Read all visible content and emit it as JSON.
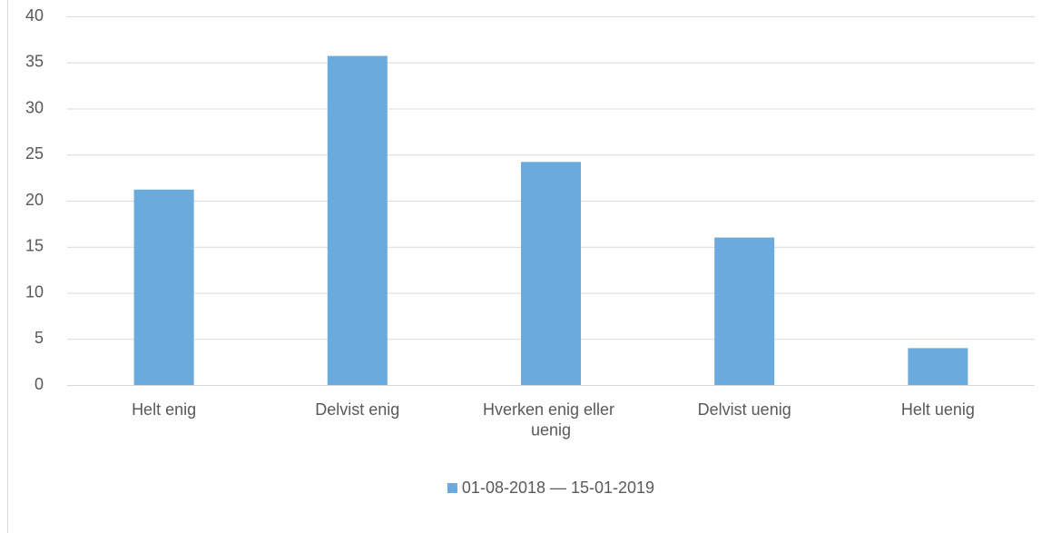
{
  "chart_data": {
    "type": "bar",
    "categories": [
      "Helt enig",
      "Delvist enig",
      "Hverken enig eller uenig",
      "Delvist uenig",
      "Helt uenig"
    ],
    "series": [
      {
        "name": "01-08-2018 — 15-01-2019",
        "color": "#6aaadc",
        "values": [
          21.2,
          35.7,
          24.2,
          16,
          4
        ]
      }
    ],
    "ylim": [
      0,
      40
    ],
    "yticks": [
      0,
      5,
      10,
      15,
      20,
      25,
      30,
      35,
      40
    ],
    "grid": true,
    "legend": "bottom"
  }
}
